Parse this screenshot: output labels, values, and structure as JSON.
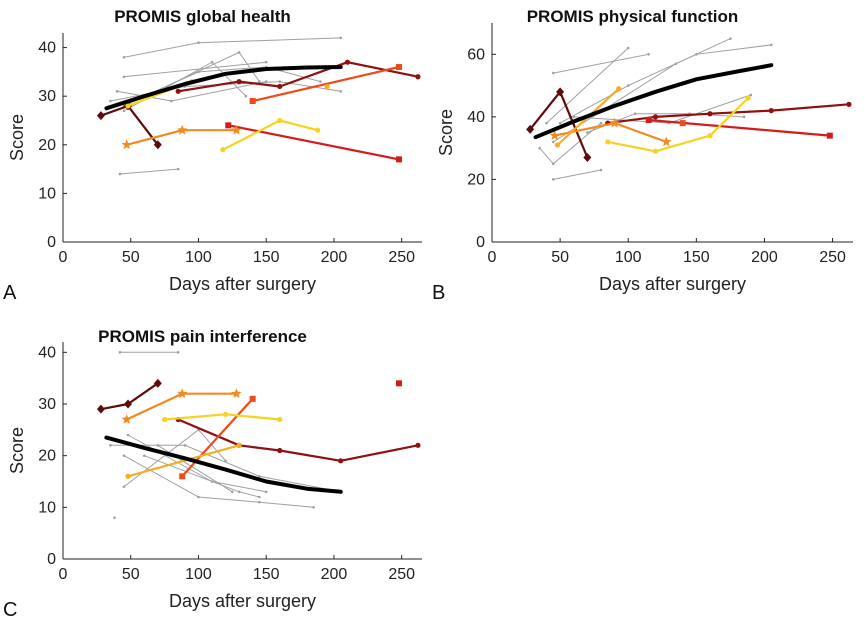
{
  "colors": {
    "grey": "#a0a0a0",
    "black": "#000000",
    "darkred": "#5e0b0b",
    "maroon": "#8f1010",
    "red": "#d41a1a",
    "orangered": "#ee4a1c",
    "orange": "#f08a22",
    "lightorange": "#f6ad22",
    "yellow": "#f8d21e",
    "axis": "#222222"
  },
  "chart_data": [
    {
      "type": "line",
      "panel_letter": "A",
      "title": "PROMIS global health",
      "xlabel": "Days after surgery",
      "ylabel": "Score",
      "xlim": [
        0,
        265
      ],
      "ylim": [
        0,
        43
      ],
      "xticks": [
        0,
        50,
        100,
        150,
        200,
        250
      ],
      "yticks": [
        0,
        10,
        20,
        30,
        40
      ],
      "grey_series": [
        {
          "points": [
            [
              45,
              38
            ],
            [
              100,
              41
            ],
            [
              205,
              42
            ]
          ]
        },
        {
          "points": [
            [
              45,
              34
            ],
            [
              150,
              37
            ]
          ]
        },
        {
          "points": [
            [
              40,
              31
            ],
            [
              80,
              29
            ],
            [
              150,
              33
            ]
          ]
        },
        {
          "points": [
            [
              35,
              29
            ],
            [
              90,
              32
            ],
            [
              160,
              33
            ],
            [
              205,
              31
            ]
          ]
        },
        {
          "points": [
            [
              45,
              27
            ],
            [
              110,
              37
            ],
            [
              135,
              30
            ]
          ]
        },
        {
          "points": [
            [
              60,
              30
            ],
            [
              100,
              35
            ],
            [
              150,
              36
            ],
            [
              190,
              33
            ]
          ]
        },
        {
          "points": [
            [
              45,
              28
            ],
            [
              130,
              39
            ],
            [
              145,
              33
            ]
          ]
        },
        {
          "points": [
            [
              42,
              14
            ],
            [
              85,
              15
            ]
          ]
        }
      ],
      "trend": {
        "name": "Mean trend",
        "points": [
          [
            32,
            27.5
          ],
          [
            60,
            30
          ],
          [
            90,
            32.5
          ],
          [
            120,
            34.6
          ],
          [
            150,
            35.6
          ],
          [
            180,
            35.9
          ],
          [
            205,
            36
          ]
        ]
      },
      "colored_series": [
        {
          "color": "darkred",
          "marker": "diamond",
          "points": [
            [
              28,
              26
            ],
            [
              48,
              28
            ],
            [
              70,
              20
            ]
          ]
        },
        {
          "color": "maroon",
          "marker": "dot",
          "points": [
            [
              85,
              31
            ],
            [
              130,
              33
            ],
            [
              160,
              32
            ],
            [
              210,
              37
            ],
            [
              262,
              34
            ]
          ]
        },
        {
          "color": "red",
          "marker": "square",
          "points": [
            [
              122,
              24
            ],
            [
              248,
              17
            ]
          ]
        },
        {
          "color": "orangered",
          "marker": "square",
          "points": [
            [
              140,
              29
            ],
            [
              248,
              36
            ]
          ]
        },
        {
          "color": "orange",
          "marker": "star",
          "points": [
            [
              47,
              20
            ],
            [
              88,
              23
            ],
            [
              128,
              23
            ]
          ]
        },
        {
          "color": "lightorange",
          "marker": "dot",
          "points": [
            [
              195,
              32
            ]
          ]
        },
        {
          "color": "yellow",
          "marker": "dot",
          "points": [
            [
              48,
              28
            ],
            [
              95,
              33
            ]
          ]
        },
        {
          "color": "yellow",
          "marker": "dot",
          "points": [
            [
              118,
              19
            ],
            [
              160,
              25
            ],
            [
              188,
              23
            ]
          ]
        }
      ]
    },
    {
      "type": "line",
      "panel_letter": "B",
      "title": "PROMIS physical function",
      "xlabel": "Days after surgery",
      "ylabel": "Score",
      "xlim": [
        0,
        265
      ],
      "ylim": [
        0,
        70
      ],
      "xticks": [
        0,
        50,
        100,
        150,
        200,
        250
      ],
      "yticks": [
        0,
        20,
        40,
        60
      ],
      "grey_series": [
        {
          "points": [
            [
              45,
              54
            ],
            [
              115,
              60
            ]
          ]
        },
        {
          "points": [
            [
              40,
              38
            ],
            [
              100,
              62
            ]
          ]
        },
        {
          "points": [
            [
              45,
              32
            ],
            [
              135,
              57
            ],
            [
              175,
              65
            ]
          ]
        },
        {
          "points": [
            [
              50,
              38
            ],
            [
              100,
              50
            ],
            [
              150,
              60
            ],
            [
              205,
              63
            ]
          ]
        },
        {
          "points": [
            [
              35,
              30
            ],
            [
              45,
              25
            ],
            [
              80,
              38
            ]
          ]
        },
        {
          "points": [
            [
              45,
              20
            ],
            [
              80,
              23
            ]
          ]
        },
        {
          "points": [
            [
              70,
              35
            ],
            [
              105,
              41
            ],
            [
              145,
              41
            ],
            [
              185,
              40
            ]
          ]
        },
        {
          "points": [
            [
              60,
              40
            ],
            [
              130,
              38
            ],
            [
              190,
              47
            ]
          ]
        }
      ],
      "trend": {
        "name": "Mean trend",
        "points": [
          [
            32,
            33.5
          ],
          [
            60,
            38.5
          ],
          [
            90,
            43.5
          ],
          [
            120,
            48
          ],
          [
            150,
            52
          ],
          [
            180,
            54.5
          ],
          [
            205,
            56.5
          ]
        ]
      },
      "colored_series": [
        {
          "color": "darkred",
          "marker": "diamond",
          "points": [
            [
              28,
              36
            ],
            [
              50,
              48
            ],
            [
              70,
              27
            ]
          ]
        },
        {
          "color": "maroon",
          "marker": "dot",
          "points": [
            [
              85,
              38
            ],
            [
              120,
              40
            ],
            [
              160,
              41
            ],
            [
              205,
              42
            ],
            [
              262,
              44
            ]
          ]
        },
        {
          "color": "red",
          "marker": "square",
          "points": [
            [
              115,
              39
            ],
            [
              248,
              34
            ]
          ]
        },
        {
          "color": "orangered",
          "marker": "square",
          "points": [
            [
              140,
              38
            ]
          ]
        },
        {
          "color": "orange",
          "marker": "star",
          "points": [
            [
              46,
              34
            ],
            [
              90,
              38
            ],
            [
              128,
              32
            ]
          ]
        },
        {
          "color": "lightorange",
          "marker": "dot",
          "points": [
            [
              48,
              31
            ],
            [
              93,
              49
            ]
          ]
        },
        {
          "color": "yellow",
          "marker": "dot",
          "points": [
            [
              85,
              32
            ],
            [
              120,
              29
            ],
            [
              160,
              34
            ],
            [
              188,
              46
            ]
          ]
        }
      ]
    },
    {
      "type": "line",
      "panel_letter": "C",
      "title": "PROMIS pain interference",
      "xlabel": "Days after surgery",
      "ylabel": "Score",
      "xlim": [
        0,
        265
      ],
      "ylim": [
        0,
        42
      ],
      "xticks": [
        0,
        50,
        100,
        150,
        200,
        250
      ],
      "yticks": [
        0,
        10,
        20,
        30,
        40
      ],
      "grey_series": [
        {
          "points": [
            [
              42,
              40
            ],
            [
              85,
              40
            ]
          ]
        },
        {
          "points": [
            [
              45,
              14
            ],
            [
              100,
              25
            ],
            [
              120,
              19
            ]
          ]
        },
        {
          "points": [
            [
              35,
              22
            ],
            [
              90,
              22
            ],
            [
              145,
              16
            ],
            [
              205,
              13
            ]
          ]
        },
        {
          "points": [
            [
              45,
              20
            ],
            [
              100,
              12
            ],
            [
              145,
              11
            ],
            [
              185,
              10
            ]
          ]
        },
        {
          "points": [
            [
              48,
              24
            ],
            [
              110,
              15
            ],
            [
              150,
              13
            ]
          ]
        },
        {
          "points": [
            [
              60,
              20
            ],
            [
              130,
              13
            ],
            [
              145,
              12
            ]
          ]
        },
        {
          "points": [
            [
              70,
              22
            ],
            [
              125,
              13
            ]
          ]
        },
        {
          "points": [
            [
              38,
              8
            ]
          ]
        }
      ],
      "trend": {
        "name": "Mean trend",
        "points": [
          [
            32,
            23.5
          ],
          [
            60,
            21.5
          ],
          [
            90,
            19.5
          ],
          [
            120,
            17.3
          ],
          [
            150,
            15
          ],
          [
            180,
            13.6
          ],
          [
            205,
            13
          ]
        ]
      },
      "colored_series": [
        {
          "color": "darkred",
          "marker": "diamond",
          "points": [
            [
              28,
              29
            ],
            [
              48,
              30
            ],
            [
              70,
              34
            ]
          ]
        },
        {
          "color": "maroon",
          "marker": "dot",
          "points": [
            [
              85,
              27
            ],
            [
              130,
              22
            ],
            [
              160,
              21
            ],
            [
              205,
              19
            ],
            [
              262,
              22
            ]
          ]
        },
        {
          "color": "red",
          "marker": "square",
          "points": [
            [
              248,
              34
            ]
          ]
        },
        {
          "color": "orangered",
          "marker": "square",
          "points": [
            [
              88,
              16
            ],
            [
              140,
              31
            ]
          ]
        },
        {
          "color": "orange",
          "marker": "star",
          "points": [
            [
              47,
              27
            ],
            [
              88,
              32
            ],
            [
              128,
              32
            ]
          ]
        },
        {
          "color": "lightorange",
          "marker": "dot",
          "points": [
            [
              48,
              16
            ],
            [
              130,
              22
            ]
          ]
        },
        {
          "color": "yellow",
          "marker": "dot",
          "points": [
            [
              75,
              27
            ],
            [
              120,
              28
            ],
            [
              160,
              27
            ]
          ]
        }
      ]
    }
  ]
}
